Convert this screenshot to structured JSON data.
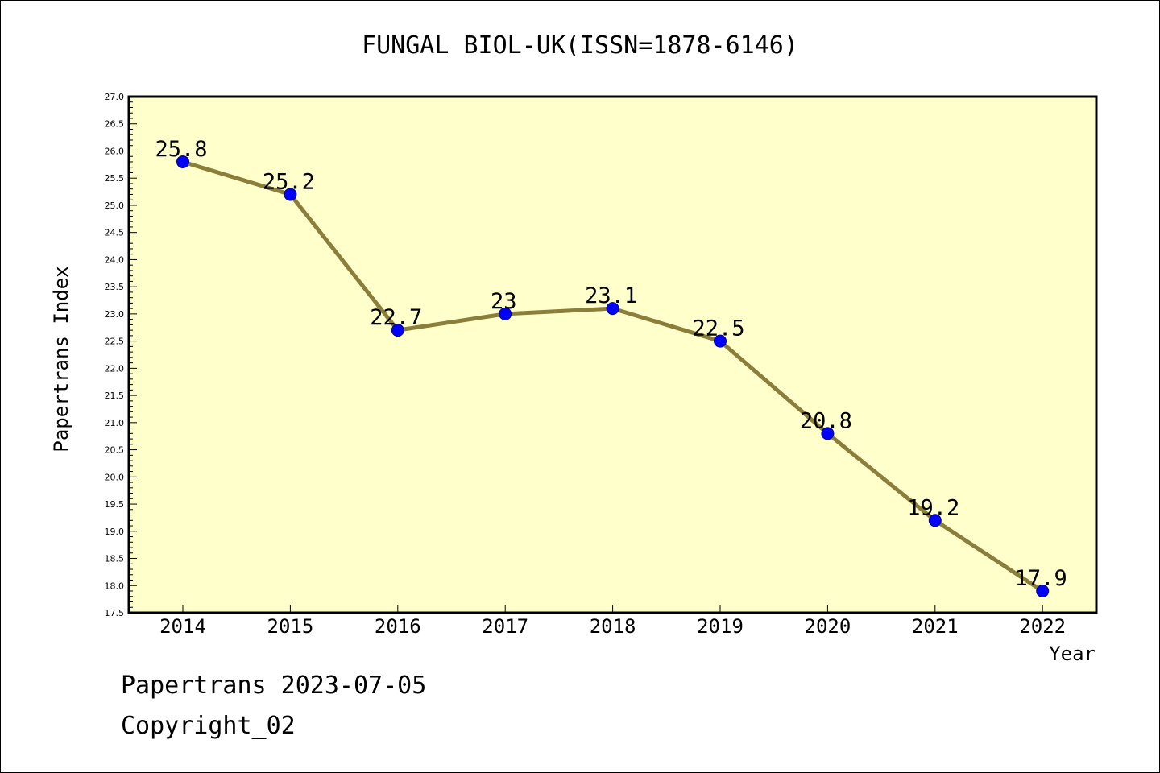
{
  "chart_data": {
    "type": "line",
    "title": "FUNGAL BIOL-UK(ISSN=1878-6146)",
    "xlabel": "Year",
    "ylabel": "Papertrans Index",
    "x": [
      "2014",
      "2015",
      "2016",
      "2017",
      "2018",
      "2019",
      "2020",
      "2021",
      "2022"
    ],
    "values": [
      25.8,
      25.2,
      22.7,
      23.0,
      23.1,
      22.5,
      20.8,
      19.2,
      17.9
    ],
    "data_labels": [
      "25.8",
      "25.2",
      "22.7",
      "23",
      "23.1",
      "22.5",
      "20.8",
      "19.2",
      "17.9"
    ],
    "ylim": [
      17.5,
      27.0
    ],
    "yticks": [
      "17.5",
      "18.0",
      "18.5",
      "19.0",
      "19.5",
      "20.0",
      "20.5",
      "21.0",
      "21.5",
      "22.0",
      "22.5",
      "23.0",
      "23.5",
      "24.0",
      "24.5",
      "25.0",
      "25.5",
      "26.0",
      "26.5",
      "27.0"
    ],
    "grid": false,
    "legend": "none",
    "colors": {
      "plot_background": "#ffffcc",
      "line": "#8b7d3a",
      "marker": "#0000ff"
    }
  },
  "footer": {
    "line1": "Papertrans 2023-07-05",
    "line2": "Copyright_02"
  }
}
